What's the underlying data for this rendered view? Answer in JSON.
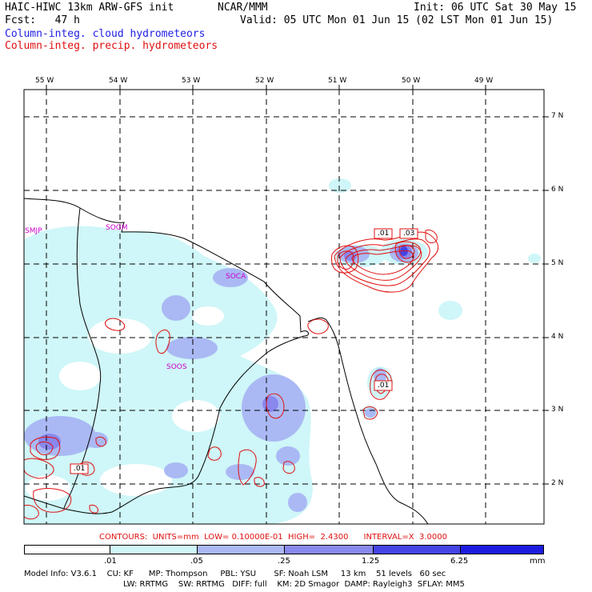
{
  "header": {
    "model": "HAIC-HIWC 13km ARW-GFS init",
    "org": "NCAR/MMM",
    "init": "Init: 06 UTC Sat 30 May 15",
    "fcst": "Fcst:   47 h",
    "valid": "Valid: 05 UTC Mon 01 Jun 15 (02 LST Mon 01 Jun 15)",
    "field1": "Column-integ. cloud hydrometeors",
    "field2": "Column-integ. precip. hydrometeors"
  },
  "colors": {
    "cloud_field_text": "#1e1ee6",
    "precip_contour": "#e01010",
    "station_label": "#cc00cc",
    "shade_1": "#cff6f8",
    "shade_2": "#aab9f4",
    "shade_3": "#8888ee",
    "shade_4": "#4444e6",
    "shade_5": "#1c1ce0"
  },
  "map": {
    "lon_labels": [
      "55 W",
      "54 W",
      "53 W",
      "52 W",
      "51 W",
      "50 W",
      "49 W"
    ],
    "lat_labels": [
      "7 N",
      "6 N",
      "5 N",
      "4 N",
      "3 N",
      "2 N"
    ],
    "stations": [
      "SMJP",
      "SOGM",
      "SOCA",
      "SOOS"
    ],
    "contour_labels": [
      ".01",
      ".03",
      ".01",
      ".01"
    ]
  },
  "contour_info": {
    "text": "CONTOURS:  UNITS=mm  LOW= 0.10000E-01  HIGH=  2.4300      INTERVAL=X  3.0000"
  },
  "colorbar": {
    "ticks": [
      ".01",
      ".05",
      ".25",
      "1.25",
      "6.25"
    ],
    "unit": "mm"
  },
  "footer": {
    "line1": "Model Info: V3.6.1    CU: KF      MP: Thompson     PBL: YSU       SF: Noah LSM     13 km    51 levels   60 sec",
    "line2": "LW: RRTMG    SW: RRTMG   DIFF: full    KM: 2D Smagor  DAMP: Rayleigh3  SFLAY: MM5"
  }
}
